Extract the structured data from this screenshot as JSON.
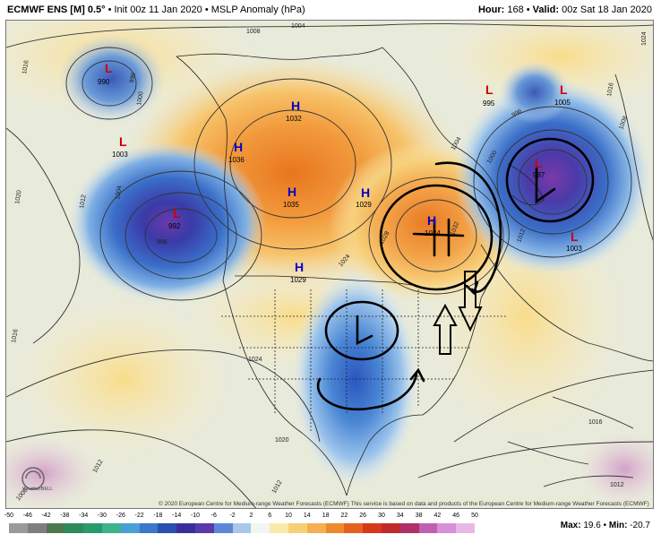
{
  "header": {
    "model": "ECMWF ENS [M] 0.5°",
    "init": "Init 00z 11 Jan 2020",
    "field": "MSLP Anomaly (hPa)",
    "hour_label": "Hour:",
    "hour_value": "168",
    "valid_label": "Valid:",
    "valid_value": "00z Sat 18 Jan 2020"
  },
  "map": {
    "pressure_centers": [
      {
        "type": "L",
        "value": "990"
      },
      {
        "type": "L",
        "value": "1003"
      },
      {
        "type": "L",
        "value": "992"
      },
      {
        "type": "H",
        "value": "1032"
      },
      {
        "type": "H",
        "value": "1036"
      },
      {
        "type": "H",
        "value": "1035"
      },
      {
        "type": "H",
        "value": "1029"
      },
      {
        "type": "H",
        "value": "1029"
      },
      {
        "type": "H",
        "value": "1034"
      },
      {
        "type": "L",
        "value": "995"
      },
      {
        "type": "L",
        "value": "1005"
      },
      {
        "type": "L",
        "value": "987"
      },
      {
        "type": "L",
        "value": "1003"
      }
    ],
    "isobar_labels": [
      "1016",
      "996",
      "1000",
      "1008",
      "1004",
      "1024",
      "1016",
      "1020",
      "1012",
      "1004",
      "996",
      "1016",
      "1028",
      "1032",
      "1024",
      "1004",
      "1000",
      "996",
      "1008",
      "1012",
      "1012",
      "1016",
      "1020",
      "1024",
      "1012",
      "1008",
      "1012"
    ],
    "logo_text": "WeatherBELL",
    "copyright": "© 2020 European Centre for Medium-range Weather Forecasts (ECMWF) This service is based on data and products of the European Centre for Medium-range Weather Forecasts (ECMWF)"
  },
  "colorbar": {
    "ticks": [
      "-50",
      "-46",
      "-42",
      "-38",
      "-34",
      "-30",
      "-26",
      "-22",
      "-18",
      "-14",
      "-10",
      "-6",
      "-2",
      "2",
      "6",
      "10",
      "14",
      "18",
      "22",
      "26",
      "30",
      "34",
      "38",
      "42",
      "46",
      "50"
    ],
    "colors": [
      "#9a9a9a",
      "#7f7f7f",
      "#4d7a4d",
      "#2e8b57",
      "#2a9a6a",
      "#3cb38a",
      "#4a9fd4",
      "#3a78c8",
      "#2a4fb0",
      "#3a2f9a",
      "#5a3aa8",
      "#5f86d6",
      "#a8c8ea",
      "#f4f4f4",
      "#fbe9a8",
      "#f7d076",
      "#f4b050",
      "#ee8a2e",
      "#e5621e",
      "#d63a1a",
      "#c02a2a",
      "#b0306a",
      "#c060b0",
      "#d890d8",
      "#e8b8e8"
    ]
  },
  "stats": {
    "max_label": "Max:",
    "max_value": "19.6",
    "min_label": "Min:",
    "min_value": "-20.7"
  },
  "colors": {
    "low_marker": "#cc0000",
    "high_marker": "#0000cc",
    "annotation": "#000000"
  }
}
